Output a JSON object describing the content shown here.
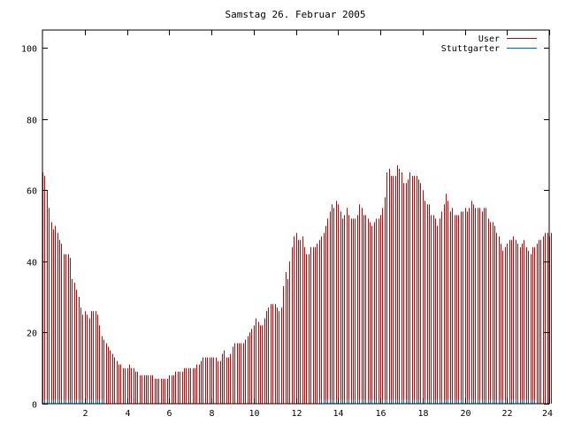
{
  "chart_data": {
    "type": "bar",
    "title": "Samstag 26. Februar 2005",
    "xlabel": "",
    "ylabel": "",
    "xlim": [
      0,
      24
    ],
    "ylim": [
      0,
      105
    ],
    "x_ticks": [
      2,
      4,
      6,
      8,
      10,
      12,
      14,
      16,
      18,
      20,
      22,
      24
    ],
    "y_ticks": [
      0,
      20,
      40,
      60,
      80,
      100
    ],
    "grid": false,
    "legend_position": "top-right",
    "x_step": 0.1,
    "series": [
      {
        "name": "User",
        "color": "#cc0000",
        "values": [
          65,
          64,
          60,
          55,
          51,
          49,
          50,
          48,
          46,
          45,
          42,
          42,
          42,
          41,
          35,
          34,
          32,
          30,
          27,
          25,
          26,
          25,
          24,
          26,
          26,
          26,
          25,
          22,
          19,
          18,
          17,
          16,
          15,
          14,
          13,
          12,
          11,
          11,
          10,
          10,
          10,
          11,
          10,
          10,
          9,
          9,
          8,
          8,
          8,
          8,
          8,
          8,
          8,
          7,
          7,
          7,
          7,
          7,
          7,
          7,
          8,
          8,
          8,
          9,
          9,
          9,
          9,
          10,
          10,
          10,
          10,
          10,
          10,
          11,
          11,
          12,
          13,
          13,
          13,
          13,
          13,
          13,
          13,
          12,
          12,
          14,
          15,
          13,
          13,
          14,
          16,
          17,
          17,
          17,
          17,
          17,
          18,
          19,
          20,
          21,
          22,
          24,
          23,
          22,
          22,
          24,
          26,
          27,
          28,
          28,
          28,
          27,
          26,
          27,
          33,
          37,
          35,
          40,
          44,
          47,
          48,
          46,
          46,
          47,
          44,
          42,
          42,
          44,
          44,
          44,
          45,
          46,
          47,
          48,
          50,
          52,
          54,
          56,
          55,
          57,
          56,
          54,
          52,
          53,
          55,
          53,
          52,
          52,
          52,
          53,
          56,
          55,
          53,
          53,
          52,
          51,
          50,
          51,
          52,
          52,
          53,
          55,
          58,
          65,
          66,
          64,
          64,
          64,
          67,
          66,
          65,
          62,
          62,
          63,
          65,
          64,
          64,
          64,
          63,
          62,
          60,
          57,
          56,
          56,
          53,
          53,
          52,
          50,
          52,
          54,
          56,
          59,
          57,
          54,
          55,
          53,
          53,
          53,
          54,
          54,
          55,
          54,
          55,
          57,
          56,
          55,
          55,
          55,
          54,
          55,
          55,
          52,
          51,
          51,
          50,
          48,
          47,
          45,
          43,
          44,
          45,
          46,
          46,
          47,
          46,
          45,
          44,
          45,
          46,
          44,
          43,
          42,
          44,
          44,
          45,
          46,
          46,
          47,
          48,
          48,
          47,
          48
        ]
      },
      {
        "name": "Stuttgarter",
        "color": "#0060a8",
        "values": [
          1,
          1,
          1,
          1,
          1,
          1,
          1,
          1,
          1,
          1,
          1,
          1,
          1,
          1,
          1,
          1,
          1,
          1,
          1,
          1,
          1,
          1,
          1,
          1,
          1,
          1,
          1,
          1,
          1,
          1,
          0,
          0,
          0,
          0,
          0,
          0,
          0,
          0,
          0,
          0,
          0,
          0,
          0,
          0,
          0,
          0,
          0,
          0,
          0,
          0,
          0,
          0,
          0,
          0,
          0,
          0,
          0,
          0,
          0,
          0,
          0,
          0,
          0,
          0,
          0,
          0,
          0,
          0,
          0,
          0,
          0,
          0,
          0,
          0,
          0,
          0,
          0,
          0,
          0,
          0,
          0,
          0,
          0,
          0,
          0,
          0,
          0,
          0,
          0,
          0,
          0,
          0,
          0,
          0,
          0,
          0,
          0,
          0,
          0,
          0,
          0,
          0,
          0,
          0,
          0,
          0,
          0,
          0,
          0,
          0,
          0,
          0,
          0,
          0,
          0,
          0,
          0,
          0,
          0,
          0,
          0,
          0,
          0,
          0,
          0,
          0,
          0,
          0,
          0,
          0,
          0,
          1,
          1,
          1,
          1,
          1,
          1,
          1,
          1,
          1,
          1,
          1,
          1,
          1,
          1,
          1,
          1,
          1,
          1,
          1,
          1,
          1,
          1,
          1,
          1,
          1,
          1,
          1,
          1,
          1,
          1,
          1,
          1,
          1,
          1,
          1,
          1,
          1,
          1,
          1,
          1,
          1,
          1,
          1,
          1,
          1,
          1,
          1,
          1,
          1,
          1,
          1,
          1,
          1,
          1,
          1,
          1,
          1,
          1,
          1,
          1,
          1,
          1,
          1,
          1,
          1,
          1,
          1,
          1,
          1,
          1,
          1,
          1,
          1,
          1,
          1,
          1,
          1,
          1,
          1,
          1,
          1,
          1,
          1,
          1,
          1,
          1,
          1,
          1,
          1,
          1,
          1,
          1,
          1,
          1,
          1,
          1,
          1,
          1,
          1,
          1,
          1,
          1,
          1,
          0,
          0,
          0,
          0,
          0,
          0,
          0,
          0,
          0,
          0,
          0,
          0,
          0,
          0,
          0,
          0,
          0,
          0,
          0,
          0,
          0
        ]
      }
    ]
  }
}
